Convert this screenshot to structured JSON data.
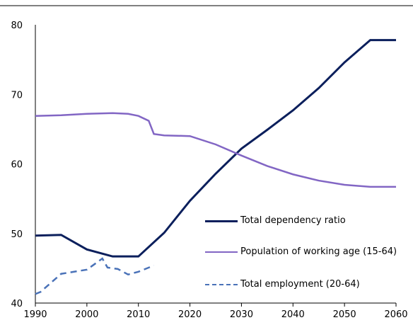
{
  "chart_data": {
    "type": "line",
    "xlim": [
      1990,
      2060
    ],
    "xticks": [
      1990,
      2000,
      2010,
      2020,
      2030,
      2040,
      2050,
      2060
    ],
    "ylim": [
      40,
      80
    ],
    "yticks": [
      40,
      50,
      60,
      70,
      80
    ],
    "series": [
      {
        "name": "Total dependency ratio",
        "color": "#0b1f5c",
        "dash": false,
        "x": [
          1990,
          1995,
          2000,
          2005,
          2010,
          2015,
          2020,
          2025,
          2030,
          2035,
          2040,
          2045,
          2050,
          2055,
          2060
        ],
        "values": [
          49.7,
          49.8,
          47.7,
          46.7,
          46.7,
          50.1,
          54.7,
          58.6,
          62.2,
          64.9,
          67.7,
          70.9,
          74.6,
          77.8,
          77.8
        ]
      },
      {
        "name": "Population of working age (15-64)",
        "color": "#8266c4",
        "dash": false,
        "x": [
          1990,
          1995,
          2000,
          2005,
          2008,
          2010,
          2012,
          2013,
          2015,
          2020,
          2025,
          2030,
          2035,
          2040,
          2045,
          2050,
          2055,
          2060
        ],
        "values": [
          66.9,
          67.0,
          67.2,
          67.3,
          67.2,
          66.9,
          66.2,
          64.3,
          64.1,
          64.0,
          62.8,
          61.2,
          59.7,
          58.5,
          57.6,
          57.0,
          56.7,
          56.7
        ]
      },
      {
        "name": "Total employment (20-64)",
        "color": "#4a72b8",
        "dash": true,
        "x": [
          1990,
          1991,
          1995,
          2000,
          2003,
          2004,
          2006,
          2008,
          2010,
          2013
        ],
        "values": [
          41.3,
          41.6,
          44.2,
          44.8,
          46.4,
          45.1,
          44.9,
          44.1,
          44.5,
          45.4
        ]
      }
    ]
  }
}
